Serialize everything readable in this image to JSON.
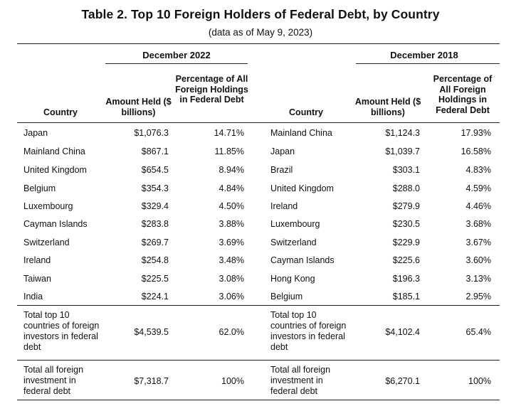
{
  "title": "Table 2. Top 10 Foreign Holders of Federal Debt, by Country",
  "subtitle": "(data as of May 9, 2023)",
  "left": {
    "period": "December 2022",
    "headers": {
      "country": "Country",
      "amount": "Amount Held ($ billions)",
      "pct": "Percentage of All Foreign Holdings in Federal Debt"
    },
    "rows": [
      {
        "country": "Japan",
        "amount": "$1,076.3",
        "pct": "14.71%"
      },
      {
        "country": "Mainland China",
        "amount": "$867.1",
        "pct": "11.85%"
      },
      {
        "country": "United Kingdom",
        "amount": "$654.5",
        "pct": "8.94%"
      },
      {
        "country": "Belgium",
        "amount": "$354.3",
        "pct": "4.84%"
      },
      {
        "country": "Luxembourg",
        "amount": "$329.4",
        "pct": "4.50%"
      },
      {
        "country": "Cayman Islands",
        "amount": "$283.8",
        "pct": "3.88%"
      },
      {
        "country": "Switzerland",
        "amount": "$269.7",
        "pct": "3.69%"
      },
      {
        "country": "Ireland",
        "amount": "$254.8",
        "pct": "3.48%"
      },
      {
        "country": "Taiwan",
        "amount": "$225.5",
        "pct": "3.08%"
      },
      {
        "country": "India",
        "amount": "$224.1",
        "pct": "3.06%"
      }
    ],
    "total_top10": {
      "label": "Total top 10 countries of foreign investors in federal debt",
      "amount": "$4,539.5",
      "pct": "62.0%"
    },
    "total_all": {
      "label": "Total all foreign investment in federal debt",
      "amount": "$7,318.7",
      "pct": "100%"
    }
  },
  "right": {
    "period": "December 2018",
    "headers": {
      "country": "Country",
      "amount": "Amount Held ($ billions)",
      "pct": "Percentage of All Foreign Holdings in Federal Debt"
    },
    "rows": [
      {
        "country": "Mainland China",
        "amount": "$1,124.3",
        "pct": "17.93%"
      },
      {
        "country": "Japan",
        "amount": "$1,039.7",
        "pct": "16.58%"
      },
      {
        "country": "Brazil",
        "amount": "$303.1",
        "pct": "4.83%"
      },
      {
        "country": "United Kingdom",
        "amount": "$288.0",
        "pct": "4.59%"
      },
      {
        "country": "Ireland",
        "amount": "$279.9",
        "pct": "4.46%"
      },
      {
        "country": "Luxembourg",
        "amount": "$230.5",
        "pct": "3.68%"
      },
      {
        "country": "Switzerland",
        "amount": "$229.9",
        "pct": "3.67%"
      },
      {
        "country": "Cayman Islands",
        "amount": "$225.6",
        "pct": "3.60%"
      },
      {
        "country": "Hong Kong",
        "amount": "$196.3",
        "pct": "3.13%"
      },
      {
        "country": "Belgium",
        "amount": "$185.1",
        "pct": "2.95%"
      }
    ],
    "total_top10": {
      "label": "Total top 10 countries of foreign investors in federal debt",
      "amount": "$4,102.4",
      "pct": "65.4%"
    },
    "total_all": {
      "label": "Total all foreign investment in federal debt",
      "amount": "$6,270.1",
      "pct": "100%"
    }
  }
}
